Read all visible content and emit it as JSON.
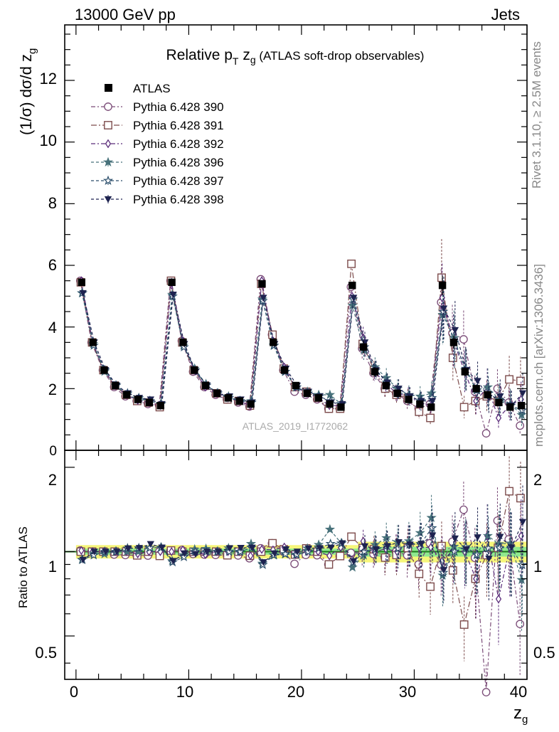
{
  "header": {
    "energy_label": "13000 GeV pp",
    "process_label": "Jets",
    "rivet_label": "Rivet 3.1.10, ≥ 2.5M events",
    "mcplots_label": "mcplots.cern.ch [arXiv:1306.3436]",
    "analysis_label": "ATLAS_2019_I1772062"
  },
  "chart_data": {
    "type": "scatter",
    "title_main": "Relative p",
    "title_sub_T": "T",
    "title_mid": " z",
    "title_sub_g": "g",
    "title_paren": " (ATLAS soft-drop observables)",
    "ylabel_main": "(1/σ) dσ/d z",
    "ylabel_sub": "g",
    "ratio_ylabel": "Ratio to ATLAS",
    "xlabel_main": "z",
    "xlabel_sub": "g",
    "xlim": [
      -1,
      40
    ],
    "ylim": [
      0,
      13.8
    ],
    "ratio_ylim": [
      0.35,
      2.3
    ],
    "x_ticks": [
      "0",
      "10",
      "20",
      "30",
      "40"
    ],
    "y_ticks": [
      "0",
      "2",
      "4",
      "6",
      "8",
      "10",
      "12"
    ],
    "ratio_ticks": [
      "0.5",
      "1",
      "2"
    ],
    "legend_position": "top-left",
    "x": [
      0.5,
      1.5,
      2.5,
      3.5,
      4.5,
      5.5,
      6.5,
      7.5,
      8.5,
      9.5,
      10.5,
      11.5,
      12.5,
      13.5,
      14.5,
      15.5,
      16.5,
      17.5,
      18.5,
      19.5,
      20.5,
      21.5,
      22.5,
      23.5,
      24.5,
      25.5,
      26.5,
      27.5,
      28.5,
      29.5,
      30.5,
      31.5,
      32.5,
      33.5,
      34.5,
      35.5,
      36.5,
      37.5,
      38.5,
      39.5
    ],
    "atlas": [
      5.45,
      3.5,
      2.6,
      2.1,
      1.8,
      1.65,
      1.55,
      1.45,
      5.45,
      3.5,
      2.6,
      2.1,
      1.85,
      1.7,
      1.6,
      1.5,
      5.4,
      3.5,
      2.6,
      2.1,
      1.85,
      1.7,
      1.5,
      1.4,
      5.35,
      3.35,
      2.55,
      2.1,
      1.85,
      1.65,
      1.5,
      1.4,
      5.35,
      3.5,
      2.55,
      2.0,
      1.8,
      1.55,
      1.4,
      1.45
    ],
    "series": [
      {
        "name": "Pythia 6.428 390",
        "color": "#7a4b77",
        "marker": "circle-open",
        "dash": "6,3,2,3",
        "values": [
          5.5,
          3.5,
          2.6,
          2.05,
          1.75,
          1.6,
          1.5,
          1.45,
          5.5,
          3.55,
          2.55,
          2.05,
          1.8,
          1.65,
          1.55,
          1.42,
          5.55,
          3.75,
          2.6,
          1.9,
          1.8,
          1.65,
          1.35,
          1.35,
          5.3,
          3.3,
          2.5,
          2.0,
          1.85,
          1.6,
          1.35,
          1.5,
          4.8,
          3.8,
          3.6,
          1.9,
          0.55,
          2.0,
          1.55,
          0.8
        ]
      },
      {
        "name": "Pythia 6.428 391",
        "color": "#7d4c4c",
        "marker": "square-open",
        "dash": "8,3,2,3",
        "values": [
          5.45,
          3.5,
          2.6,
          2.1,
          1.8,
          1.6,
          1.55,
          1.4,
          5.5,
          3.5,
          2.6,
          2.1,
          1.85,
          1.65,
          1.6,
          1.45,
          5.4,
          3.75,
          2.65,
          2.05,
          1.9,
          1.7,
          1.35,
          1.35,
          6.05,
          3.45,
          2.6,
          2.0,
          1.8,
          1.7,
          1.25,
          1.05,
          5.6,
          3.0,
          1.4,
          1.6,
          1.75,
          1.6,
          2.3,
          2.25
        ]
      },
      {
        "name": "Pythia 6.428 392",
        "color": "#5b2c7a",
        "marker": "diamond-open",
        "dash": "6,3,2,3",
        "values": [
          5.5,
          3.5,
          2.6,
          2.1,
          1.8,
          1.62,
          1.55,
          1.45,
          5.45,
          3.55,
          2.6,
          2.05,
          1.85,
          1.7,
          1.6,
          1.45,
          5.5,
          3.55,
          2.7,
          2.05,
          1.85,
          1.7,
          1.45,
          1.45,
          5.0,
          3.65,
          2.55,
          2.15,
          1.85,
          1.75,
          1.55,
          1.45,
          4.95,
          3.55,
          2.55,
          1.6,
          2.05,
          1.05,
          1.45,
          1.65
        ]
      },
      {
        "name": "Pythia 6.428 396",
        "color": "#47717a",
        "marker": "star",
        "dash": "4,3",
        "values": [
          5.1,
          3.45,
          2.55,
          2.1,
          1.8,
          1.65,
          1.6,
          1.5,
          5.05,
          3.4,
          2.65,
          2.15,
          1.85,
          1.75,
          1.6,
          1.6,
          4.9,
          3.4,
          2.55,
          2.05,
          1.9,
          1.8,
          1.8,
          1.5,
          4.7,
          3.25,
          2.7,
          2.35,
          2.0,
          1.8,
          1.75,
          1.85,
          4.4,
          3.65,
          2.6,
          1.95,
          2.05,
          1.65,
          1.5,
          1.15
        ]
      },
      {
        "name": "Pythia 6.428 397",
        "color": "#2b4e6b",
        "marker": "star-open",
        "dash": "4,3",
        "values": [
          5.1,
          3.4,
          2.6,
          2.1,
          1.85,
          1.7,
          1.6,
          1.5,
          5.0,
          3.35,
          2.6,
          2.1,
          1.85,
          1.7,
          1.6,
          1.55,
          4.85,
          3.4,
          2.55,
          2.05,
          1.85,
          1.75,
          1.6,
          1.5,
          4.9,
          3.35,
          2.6,
          2.2,
          1.9,
          1.75,
          1.6,
          1.7,
          4.5,
          3.5,
          2.65,
          1.95,
          1.85,
          1.6,
          1.45,
          1.3
        ]
      },
      {
        "name": "Pythia 6.428 398",
        "color": "#1e2350",
        "marker": "triangle-down",
        "dash": "4,3",
        "values": [
          5.1,
          3.5,
          2.6,
          2.1,
          1.85,
          1.7,
          1.65,
          1.5,
          5.05,
          3.45,
          2.55,
          2.1,
          1.85,
          1.75,
          1.65,
          1.55,
          4.95,
          3.45,
          2.65,
          2.1,
          1.9,
          1.75,
          1.55,
          1.5,
          4.95,
          3.5,
          2.6,
          2.2,
          2.0,
          1.75,
          1.6,
          1.6,
          4.6,
          3.9,
          2.6,
          2.25,
          1.7,
          1.75,
          1.45,
          1.85
        ]
      }
    ]
  }
}
